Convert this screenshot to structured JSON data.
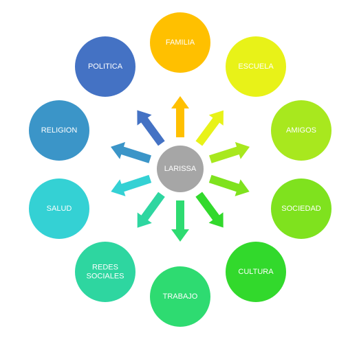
{
  "center": {
    "label": "LARISSA",
    "color": "#a6a6a6"
  },
  "nodes": [
    {
      "id": "familia",
      "lines": [
        "FAMILIA"
      ],
      "color": "#ffc000"
    },
    {
      "id": "escuela",
      "lines": [
        "ESCUELA"
      ],
      "color": "#e8f218"
    },
    {
      "id": "amigos",
      "lines": [
        "AMIGOS"
      ],
      "color": "#a8e81e"
    },
    {
      "id": "sociedad",
      "lines": [
        "SOCIEDAD"
      ],
      "color": "#7fe21e"
    },
    {
      "id": "cultura",
      "lines": [
        "CULTURA"
      ],
      "color": "#32d92c"
    },
    {
      "id": "trabajo",
      "lines": [
        "TRABAJO"
      ],
      "color": "#2edb71"
    },
    {
      "id": "redes-sociales",
      "lines": [
        "REDES",
        "SOCIALES"
      ],
      "color": "#2ed6a0"
    },
    {
      "id": "salud",
      "lines": [
        "SALUD"
      ],
      "color": "#34d1d4"
    },
    {
      "id": "religion",
      "lines": [
        "RELIGION"
      ],
      "color": "#3b95c8"
    },
    {
      "id": "politica",
      "lines": [
        "POLITICA"
      ],
      "color": "#4472c4"
    }
  ]
}
